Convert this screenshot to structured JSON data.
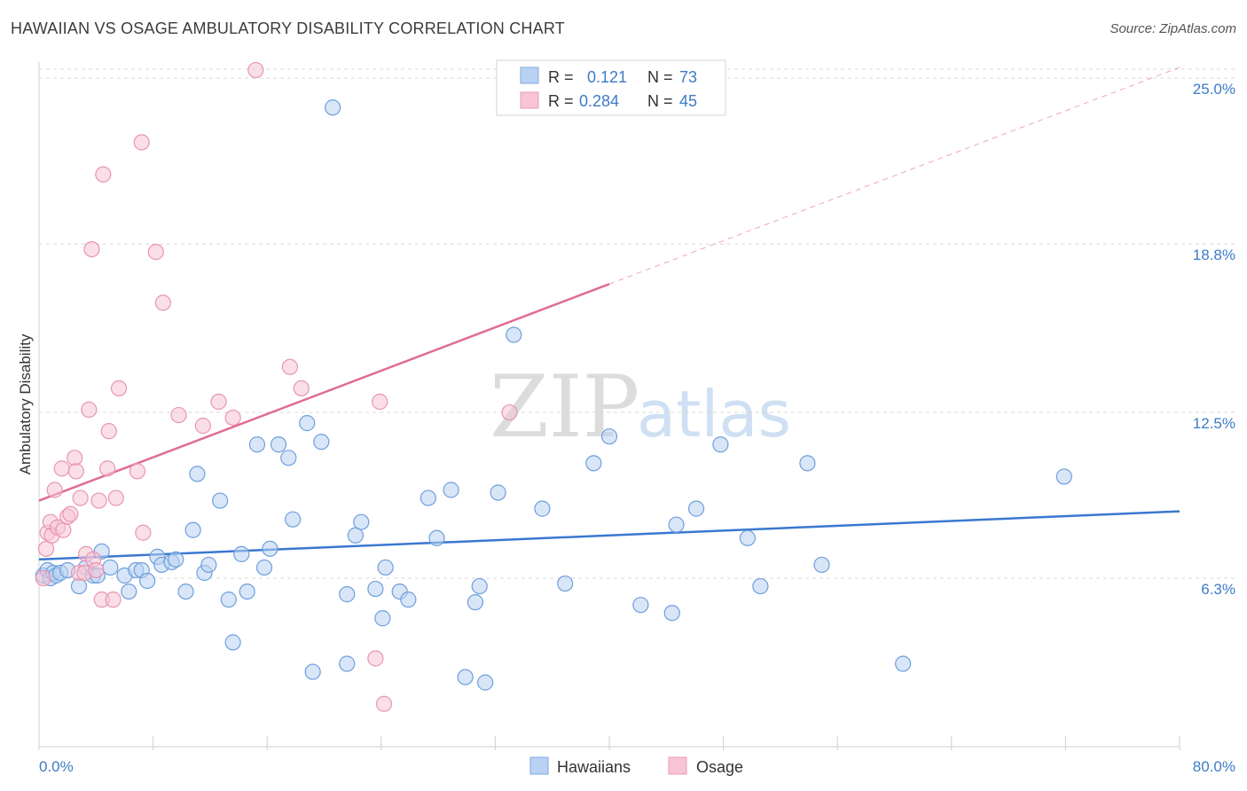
{
  "title": "HAWAIIAN VS OSAGE AMBULATORY DISABILITY CORRELATION CHART",
  "source": "Source: ZipAtlas.com",
  "watermark": {
    "zip": "ZIP",
    "atlas": "atlas"
  },
  "colors": {
    "hawaiians": "#3a78d0",
    "hawaiians_fill": "#b9d2f2",
    "osage": "#e06b92",
    "osage_fill": "#f7c5d5",
    "tick_text": "#3d7bc7",
    "grid": "#d8d8d8"
  },
  "legend": {
    "rows": [
      {
        "r_label": "R =",
        "r_value": "0.121",
        "n_label": "N =",
        "n_value": "73"
      },
      {
        "r_label": "R =",
        "r_value": "0.284",
        "n_label": "N =",
        "n_value": "45"
      }
    ]
  },
  "bottom_legend": [
    "Hawaiians",
    "Osage"
  ],
  "chart_data": {
    "type": "scatter",
    "title": "HAWAIIAN VS OSAGE AMBULATORY DISABILITY CORRELATION CHART",
    "xlabel": "",
    "ylabel": "Ambulatory Disability",
    "xlim": [
      0,
      80
    ],
    "ylim": [
      0,
      25.6
    ],
    "x_tick_labels": [
      "0.0%",
      "80.0%"
    ],
    "y_ticks": [
      6.3,
      12.5,
      18.8,
      25.0
    ],
    "y_tick_labels": [
      "6.3%",
      "12.5%",
      "18.8%",
      "25.0%"
    ],
    "legend_position": "top-center",
    "series": [
      {
        "name": "Hawaiians",
        "R": 0.121,
        "N": 73,
        "trend": {
          "x0": 0,
          "y0": 7.0,
          "x1": 80,
          "y1": 8.8
        },
        "points": [
          [
            0.3,
            6.4
          ],
          [
            0.6,
            6.6
          ],
          [
            0.8,
            6.3
          ],
          [
            1.0,
            6.5
          ],
          [
            1.2,
            6.4
          ],
          [
            1.5,
            6.5
          ],
          [
            2.0,
            6.6
          ],
          [
            2.8,
            6.0
          ],
          [
            3.3,
            6.7
          ],
          [
            3.8,
            6.4
          ],
          [
            4.1,
            6.4
          ],
          [
            4.4,
            7.3
          ],
          [
            5.0,
            6.7
          ],
          [
            6.0,
            6.4
          ],
          [
            6.3,
            5.8
          ],
          [
            6.8,
            6.6
          ],
          [
            7.2,
            6.6
          ],
          [
            7.6,
            6.2
          ],
          [
            8.3,
            7.1
          ],
          [
            8.6,
            6.8
          ],
          [
            9.3,
            6.9
          ],
          [
            9.6,
            7.0
          ],
          [
            10.3,
            5.8
          ],
          [
            10.8,
            8.1
          ],
          [
            11.1,
            10.2
          ],
          [
            11.6,
            6.5
          ],
          [
            11.9,
            6.8
          ],
          [
            12.7,
            9.2
          ],
          [
            13.3,
            5.5
          ],
          [
            13.6,
            3.9
          ],
          [
            14.2,
            7.2
          ],
          [
            14.6,
            5.8
          ],
          [
            15.3,
            11.3
          ],
          [
            15.8,
            6.7
          ],
          [
            16.2,
            7.4
          ],
          [
            16.8,
            11.3
          ],
          [
            17.5,
            10.8
          ],
          [
            17.8,
            8.5
          ],
          [
            18.8,
            12.1
          ],
          [
            19.2,
            2.8
          ],
          [
            19.8,
            11.4
          ],
          [
            20.6,
            23.9
          ],
          [
            21.6,
            5.7
          ],
          [
            21.6,
            3.1
          ],
          [
            22.2,
            7.9
          ],
          [
            22.6,
            8.4
          ],
          [
            23.6,
            5.9
          ],
          [
            24.1,
            4.8
          ],
          [
            24.3,
            6.7
          ],
          [
            25.3,
            5.8
          ],
          [
            25.9,
            5.5
          ],
          [
            27.3,
            9.3
          ],
          [
            27.9,
            7.8
          ],
          [
            28.9,
            9.6
          ],
          [
            29.9,
            2.6
          ],
          [
            30.6,
            5.4
          ],
          [
            30.9,
            6.0
          ],
          [
            31.3,
            2.4
          ],
          [
            32.2,
            9.5
          ],
          [
            33.3,
            15.4
          ],
          [
            35.3,
            8.9
          ],
          [
            36.9,
            6.1
          ],
          [
            38.9,
            10.6
          ],
          [
            40.0,
            11.6
          ],
          [
            42.2,
            5.3
          ],
          [
            44.4,
            5.0
          ],
          [
            44.7,
            8.3
          ],
          [
            46.1,
            8.9
          ],
          [
            47.8,
            11.3
          ],
          [
            49.7,
            7.8
          ],
          [
            50.6,
            6.0
          ],
          [
            53.9,
            10.6
          ],
          [
            54.9,
            6.8
          ],
          [
            60.6,
            3.1
          ],
          [
            71.9,
            10.1
          ]
        ]
      },
      {
        "name": "Osage",
        "R": 0.284,
        "N": 45,
        "trend": {
          "x0": 0,
          "y0": 9.2,
          "x1": 40,
          "y1": 17.3
        },
        "trend_dashed_to": {
          "x": 80,
          "y": 25.4
        },
        "points": [
          [
            0.3,
            6.3
          ],
          [
            0.5,
            7.4
          ],
          [
            0.6,
            8.0
          ],
          [
            0.8,
            8.4
          ],
          [
            0.9,
            7.9
          ],
          [
            1.1,
            9.6
          ],
          [
            1.3,
            8.2
          ],
          [
            1.6,
            10.4
          ],
          [
            1.7,
            8.1
          ],
          [
            2.0,
            8.6
          ],
          [
            2.2,
            8.7
          ],
          [
            2.5,
            10.8
          ],
          [
            2.6,
            10.3
          ],
          [
            2.8,
            6.5
          ],
          [
            2.9,
            9.3
          ],
          [
            3.2,
            6.5
          ],
          [
            3.3,
            7.2
          ],
          [
            3.5,
            12.6
          ],
          [
            3.7,
            18.6
          ],
          [
            3.8,
            7.0
          ],
          [
            4.0,
            6.6
          ],
          [
            4.2,
            9.2
          ],
          [
            4.4,
            5.5
          ],
          [
            4.5,
            21.4
          ],
          [
            4.8,
            10.4
          ],
          [
            4.9,
            11.8
          ],
          [
            5.2,
            5.5
          ],
          [
            5.4,
            9.3
          ],
          [
            5.6,
            13.4
          ],
          [
            6.9,
            10.3
          ],
          [
            7.2,
            22.6
          ],
          [
            7.3,
            8.0
          ],
          [
            8.2,
            18.5
          ],
          [
            8.7,
            16.6
          ],
          [
            9.8,
            12.4
          ],
          [
            11.5,
            12.0
          ],
          [
            12.6,
            12.9
          ],
          [
            13.6,
            12.3
          ],
          [
            15.2,
            25.3
          ],
          [
            17.6,
            14.2
          ],
          [
            18.4,
            13.4
          ],
          [
            23.6,
            3.3
          ],
          [
            23.9,
            12.9
          ],
          [
            24.2,
            1.6
          ],
          [
            33.0,
            12.5
          ]
        ]
      }
    ]
  }
}
